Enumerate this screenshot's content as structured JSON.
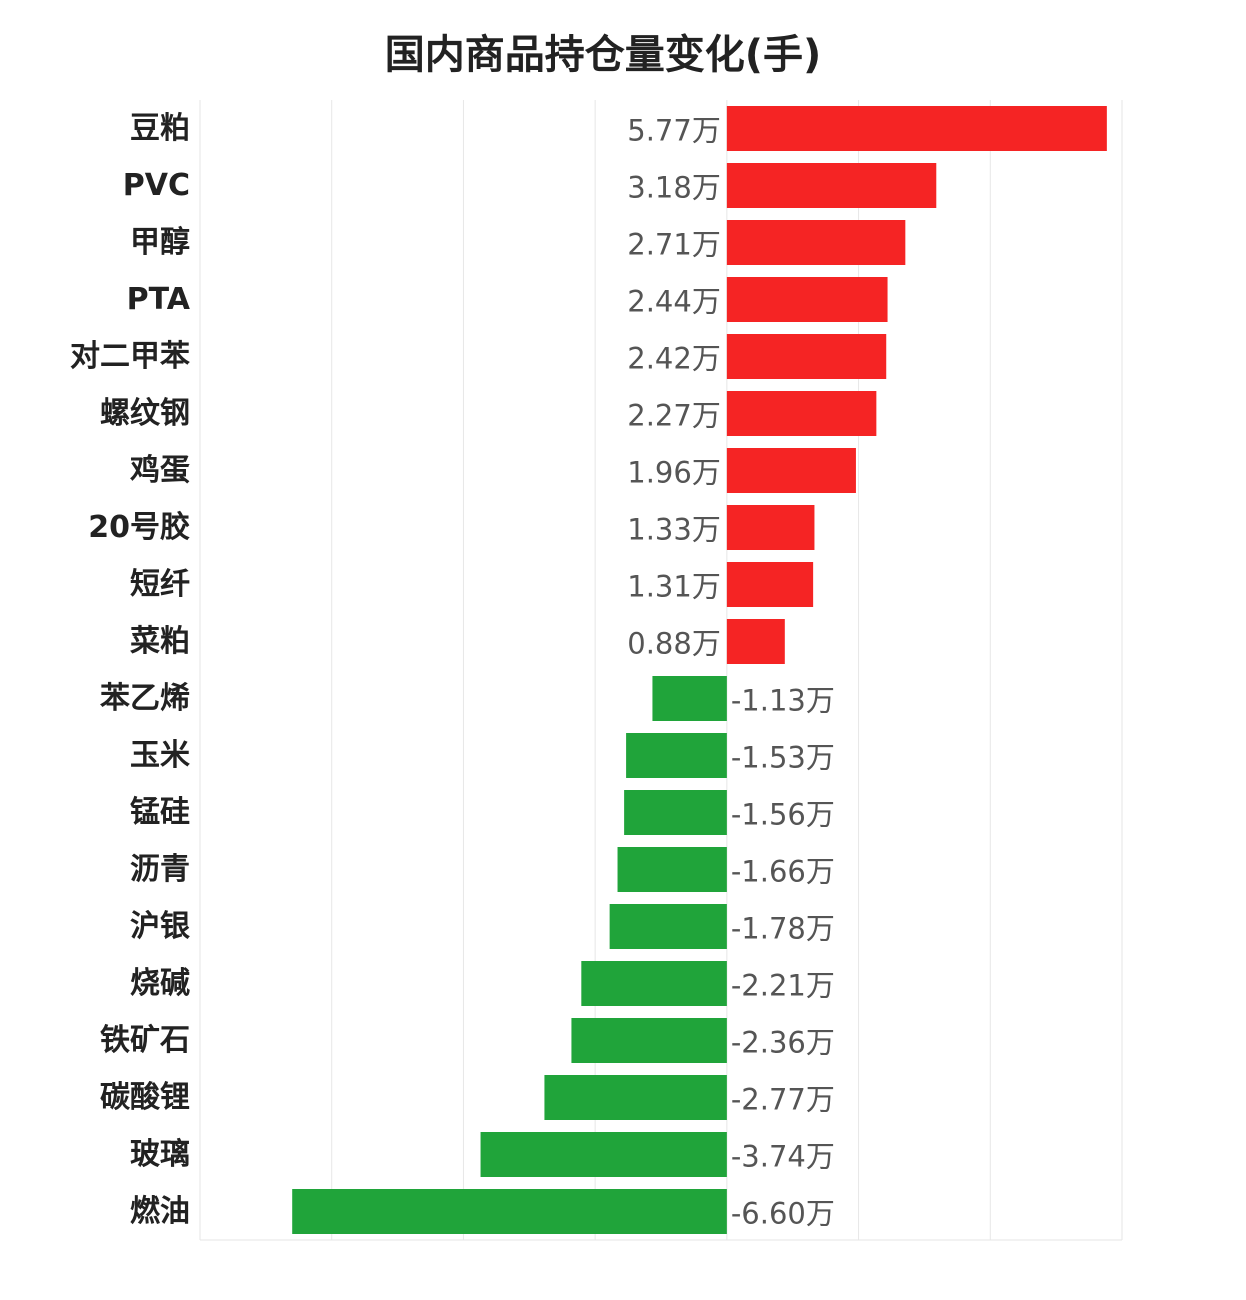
{
  "chart_data": {
    "type": "bar",
    "orientation": "horizontal",
    "title": "国内商品持仓量变化(手)",
    "unit": "万",
    "categories": [
      "豆粕",
      "PVC",
      "甲醇",
      "PTA",
      "对二甲苯",
      "螺纹钢",
      "鸡蛋",
      "20号胶",
      "短纤",
      "菜粕",
      "苯乙烯",
      "玉米",
      "锰硅",
      "沥青",
      "沪银",
      "烧碱",
      "铁矿石",
      "碳酸锂",
      "玻璃",
      "燃油"
    ],
    "values": [
      5.77,
      3.18,
      2.71,
      2.44,
      2.42,
      2.27,
      1.96,
      1.33,
      1.31,
      0.88,
      -1.13,
      -1.53,
      -1.56,
      -1.66,
      -1.78,
      -2.21,
      -2.36,
      -2.77,
      -3.74,
      -6.6
    ],
    "labels": [
      "5.77万",
      "3.18万",
      "2.71万",
      "2.44万",
      "2.42万",
      "2.27万",
      "1.96万",
      "1.33万",
      "1.31万",
      "0.88万",
      "-1.13万",
      "-1.53万",
      "-1.56万",
      "-1.66万",
      "-1.78万",
      "-2.21万",
      "-2.36万",
      "-2.77万",
      "-3.74万",
      "-6.60万"
    ],
    "xlim": [
      -8,
      6
    ],
    "grid": true,
    "colors": {
      "positive": "#f52424",
      "negative": "#20a43a",
      "grid": "#e6e6e6"
    }
  }
}
